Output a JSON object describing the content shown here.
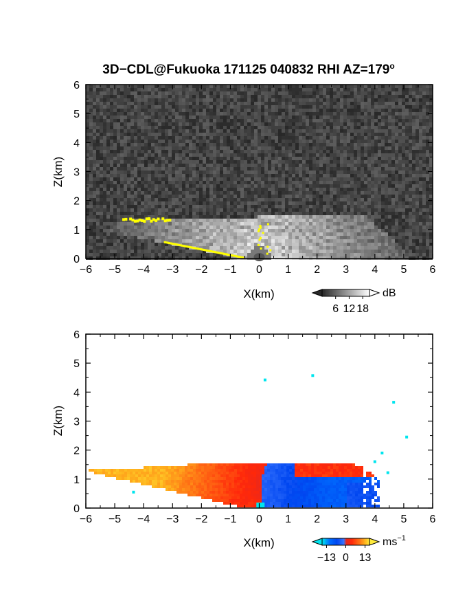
{
  "title": "3D−CDL@Fukuoka 171125 040832 RHI AZ=179",
  "title_superscript": "o",
  "colors": {
    "frame": "#000000",
    "snr_yellow": "#ffff00",
    "velocity_cyan": "#00e5ee"
  },
  "chart_data": [
    {
      "type": "heatmap",
      "name": "snr-panel",
      "quantity": "SNR",
      "xlabel": "X(km)",
      "ylabel": "Z(km)",
      "xlim": [
        -6,
        6
      ],
      "ylim": [
        0,
        6
      ],
      "x_ticks": [
        "−6",
        "−5",
        "−4",
        "−3",
        "−2",
        "−1",
        "0",
        "1",
        "2",
        "3",
        "4",
        "5",
        "6"
      ],
      "y_ticks": [
        "0",
        "1",
        "2",
        "3",
        "4",
        "5",
        "6"
      ],
      "colormap": "grayscale",
      "colorbar": {
        "unit": "dB",
        "ticks": [
          "6",
          "12",
          "18"
        ],
        "tick_values": [
          6,
          12,
          18
        ],
        "range": [
          0,
          21
        ]
      },
      "echo_top_km": 1.55,
      "echo_left_km": -6,
      "echo_right_km": 5.2,
      "yellow_band": {
        "x_from": -4.9,
        "x_to": -3.1,
        "z": 1.33
      },
      "yellow_ground": {
        "x_from": -3.3,
        "x_to": -0.6,
        "z_from": 0.55,
        "z_to": 0.02
      },
      "yellow_column": {
        "x": 0.15,
        "z_from": 0.2,
        "z_to": 1.25
      }
    },
    {
      "type": "heatmap",
      "name": "velocity-panel",
      "quantity": "Doppler velocity",
      "xlabel": "X(km)",
      "ylabel": "Z(km)",
      "xlim": [
        -6,
        6
      ],
      "ylim": [
        0,
        6
      ],
      "x_ticks": [
        "−6",
        "−5",
        "−4",
        "−3",
        "−2",
        "−1",
        "0",
        "1",
        "2",
        "3",
        "4",
        "5",
        "6"
      ],
      "y_ticks": [
        "0",
        "1",
        "2",
        "3",
        "4",
        "5",
        "6"
      ],
      "colormap": "blue-white-red",
      "colorbar": {
        "unit": "ms",
        "unit_superscript": "−1",
        "ticks": [
          "−13",
          "0",
          "13"
        ],
        "tick_values": [
          -13,
          0,
          13
        ],
        "range": [
          -16,
          16
        ]
      },
      "echo_top_km": 1.55,
      "echo_left_km": -6,
      "echo_right_km": 4.2,
      "velocity_boundary_km": 0.05,
      "scatter_points": [
        {
          "x": 0.2,
          "z": 4.42
        },
        {
          "x": 1.85,
          "z": 4.57
        },
        {
          "x": 4.65,
          "z": 3.65
        },
        {
          "x": 5.1,
          "z": 2.45
        },
        {
          "x": 4.25,
          "z": 1.9
        },
        {
          "x": 4.0,
          "z": 1.6
        },
        {
          "x": 4.45,
          "z": 1.22
        },
        {
          "x": -4.35,
          "z": 0.55
        }
      ]
    }
  ]
}
